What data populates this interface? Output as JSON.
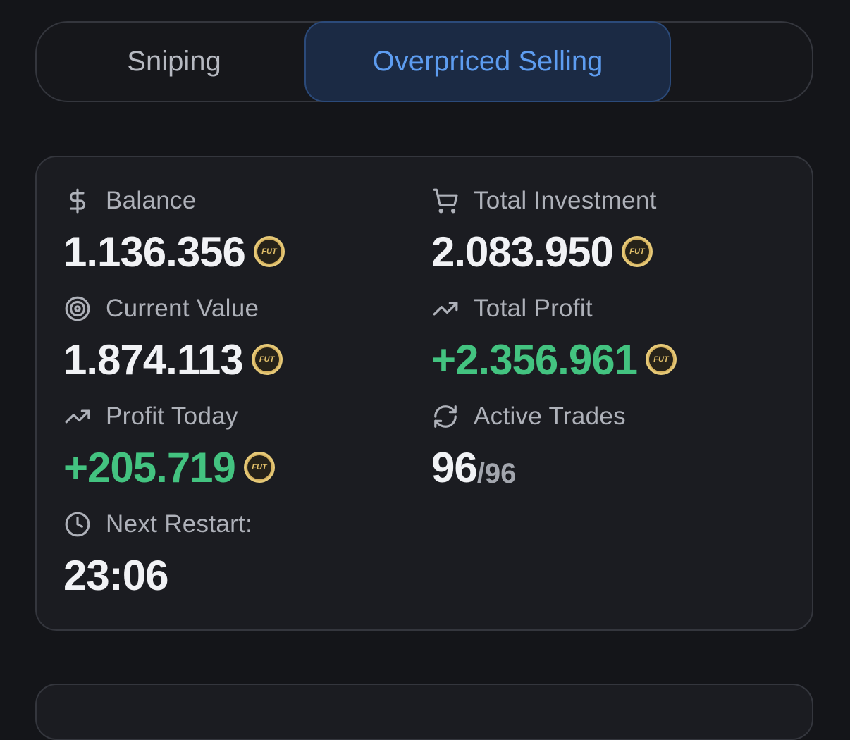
{
  "tabs": {
    "sniping": "Sniping",
    "overpriced": "Overpriced Selling",
    "active": "overpriced"
  },
  "stats": {
    "balance": {
      "label": "Balance",
      "value": "1.136.356",
      "icon": "dollar-icon"
    },
    "total_investment": {
      "label": "Total Investment",
      "value": "2.083.950",
      "icon": "cart-icon"
    },
    "current_value": {
      "label": "Current Value",
      "value": "1.874.113",
      "icon": "target-icon"
    },
    "total_profit": {
      "label": "Total Profit",
      "value": "+2.356.961",
      "icon": "trending-up-icon"
    },
    "profit_today": {
      "label": "Profit Today",
      "value": "+205.719",
      "icon": "trending-up-icon"
    },
    "active_trades": {
      "label": "Active Trades",
      "value": "96",
      "total": "/96",
      "icon": "refresh-icon"
    },
    "next_restart": {
      "label": "Next Restart:",
      "value": "23:06",
      "icon": "clock-icon"
    }
  },
  "coin": {
    "label": "FUT"
  },
  "colors": {
    "background": "#141519",
    "card": "#1b1c21",
    "accent": "#5d9cf0",
    "positive": "#43c380",
    "coin_gold": "#d6b25e"
  }
}
